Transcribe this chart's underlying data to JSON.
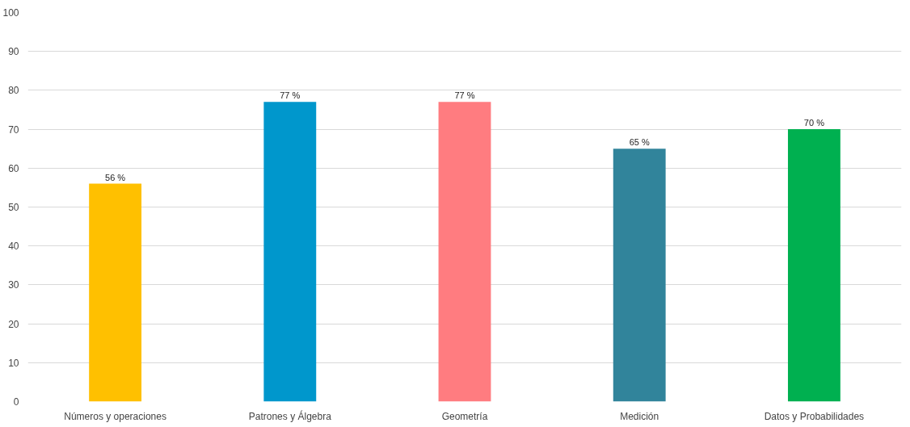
{
  "chart_data": {
    "type": "bar",
    "categories": [
      "Números y operaciones",
      "Patrones y Álgebra",
      "Geometría",
      "Medición",
      "Datos y Probabilidades"
    ],
    "values": [
      56,
      77,
      77,
      65,
      70
    ],
    "colors": [
      "#ffc000",
      "#0097cc",
      "#ff7c80",
      "#31849b",
      "#00b050"
    ],
    "value_labels": [
      "56 %",
      "77 %",
      "77 %",
      "65 %",
      "70 %"
    ],
    "ylim": [
      0,
      100
    ],
    "yticks": [
      0,
      10,
      20,
      30,
      40,
      50,
      60,
      70,
      80,
      90,
      100
    ],
    "grid": "y"
  }
}
